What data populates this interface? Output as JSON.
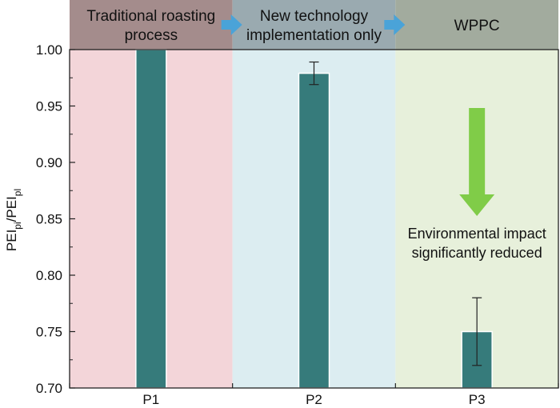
{
  "chart_data": {
    "type": "bar",
    "categories": [
      "P1",
      "P2",
      "P3"
    ],
    "values": [
      1.0,
      0.979,
      0.75
    ],
    "errors": [
      0,
      0.01,
      0.03
    ],
    "ylim": [
      0.7,
      1.0
    ],
    "yticks": [
      "0.70",
      "0.75",
      "0.80",
      "0.85",
      "0.90",
      "0.95",
      "1.00"
    ],
    "ylabel": {
      "main": "PEI",
      "sub1": "pi",
      "sep": "/PEI",
      "sub2": "pl"
    },
    "bar_color": "#367b7b",
    "grid": false,
    "phases": [
      {
        "lines": [
          "Traditional roasting",
          "process"
        ],
        "header_color": "#a48c8c",
        "region_color": "#f3d5d9"
      },
      {
        "lines": [
          "New technology",
          "implementation only"
        ],
        "header_color": "#9aaab0",
        "region_color": "#dcedf1"
      },
      {
        "lines": [
          "WPPC"
        ],
        "header_color": "#a2ab9e",
        "region_color": "#e7f0db"
      }
    ],
    "phase_arrow_color": "#4aa3d8",
    "annotation": {
      "lines": [
        "Environmental impact",
        "significantly reduced"
      ],
      "arrow_color": "#80cc48"
    }
  }
}
